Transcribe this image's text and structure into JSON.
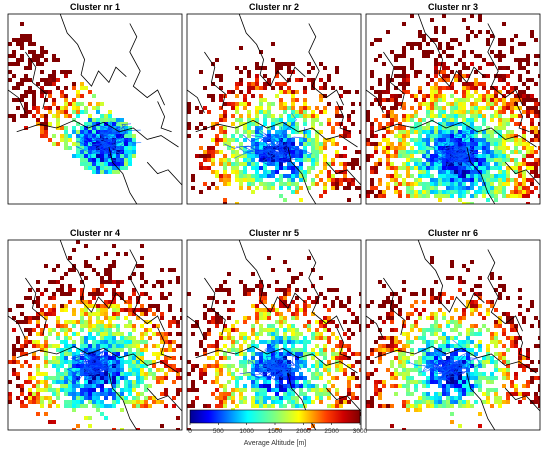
{
  "panels": [
    {
      "title": "Cluster nr 1"
    },
    {
      "title": "Cluster nr 2"
    },
    {
      "title": "Cluster nr 3"
    },
    {
      "title": "Cluster nr 4"
    },
    {
      "title": "Cluster nr 5"
    },
    {
      "title": "Cluster nr 6"
    }
  ],
  "chart_data": {
    "type": "heatmap",
    "titles": [
      "Cluster nr 1",
      "Cluster nr 2",
      "Cluster nr 3",
      "Cluster nr 4",
      "Cluster nr 5",
      "Cluster nr 6"
    ],
    "colorbar": {
      "label": "Average Altitude [m]",
      "range": [
        0,
        3000
      ],
      "ticks": [
        0,
        500,
        1000,
        1500,
        2000,
        2500,
        3000
      ],
      "colormap": "jet",
      "colors": [
        "#00008f",
        "#0000ff",
        "#007fff",
        "#00ffff",
        "#7fff7f",
        "#ffff00",
        "#ff7f00",
        "#ff0000",
        "#800000"
      ]
    },
    "grid": false,
    "legend_placement": "bottom-center"
  }
}
